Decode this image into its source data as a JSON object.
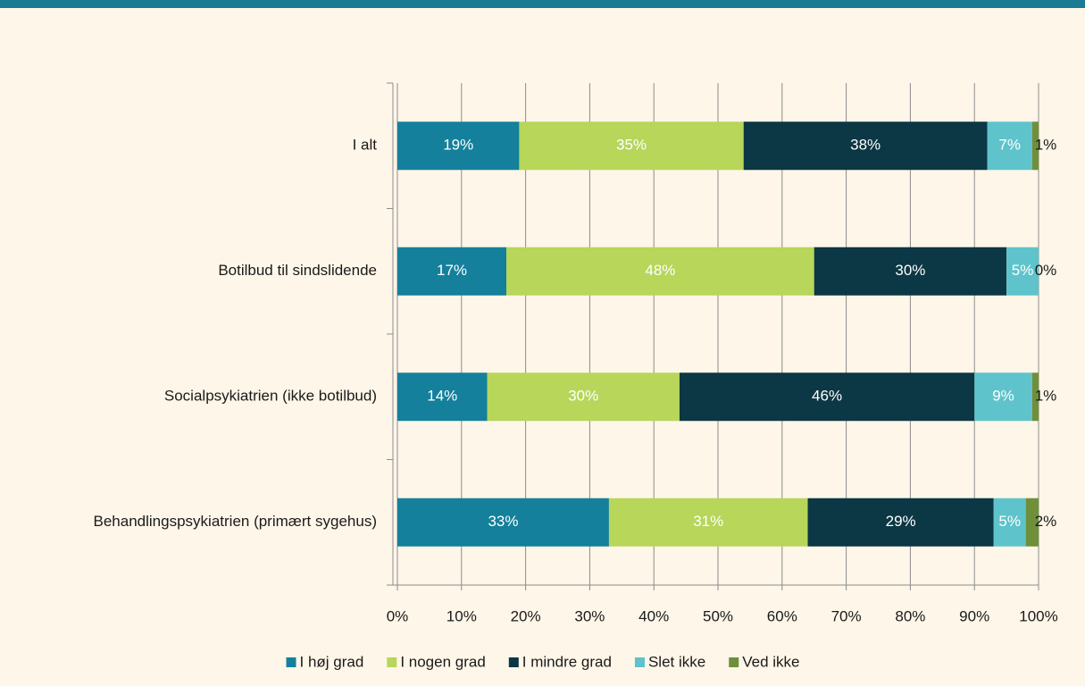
{
  "chart_data": {
    "type": "stacked_barh",
    "categories": [
      "I alt",
      "Botilbud til sindslidende",
      "Socialpsykiatrien (ikke botilbud)",
      "Behandlingspsykiatrien (primært sygehus)"
    ],
    "series": [
      {
        "name": "I høj grad",
        "color": "#14809b",
        "values": [
          19,
          17,
          14,
          33
        ],
        "value_labels": [
          "19%",
          "17%",
          "14%",
          "33%"
        ]
      },
      {
        "name": "I nogen grad",
        "color": "#b7d65a",
        "values": [
          35,
          48,
          30,
          31
        ],
        "value_labels": [
          "35%",
          "48%",
          "30%",
          "31%"
        ]
      },
      {
        "name": "I mindre grad",
        "color": "#0c3744",
        "values": [
          38,
          30,
          46,
          29
        ],
        "value_labels": [
          "38%",
          "30%",
          "46%",
          "29%"
        ]
      },
      {
        "name": "Slet ikke",
        "color": "#5fc3cb",
        "values": [
          7,
          5,
          9,
          5
        ],
        "value_labels": [
          "7%",
          "5%",
          "9%",
          "5%"
        ]
      },
      {
        "name": "Ved ikke",
        "color": "#6f8f3a",
        "values": [
          1,
          0,
          1,
          2
        ],
        "value_labels": [
          "1%",
          "0%",
          "1%",
          "2%"
        ]
      }
    ],
    "xlim": [
      0,
      100
    ],
    "xticks": [
      {
        "value": 0,
        "label": "0%"
      },
      {
        "value": 10,
        "label": "10%"
      },
      {
        "value": 20,
        "label": "20%"
      },
      {
        "value": 30,
        "label": "30%"
      },
      {
        "value": 40,
        "label": "40%"
      },
      {
        "value": 50,
        "label": "50%"
      },
      {
        "value": 60,
        "label": "60%"
      },
      {
        "value": 70,
        "label": "70%"
      },
      {
        "value": 80,
        "label": "80%"
      },
      {
        "value": 90,
        "label": "90%"
      },
      {
        "value": 100,
        "label": "100%"
      }
    ],
    "grid": true,
    "legend": "bottom"
  }
}
